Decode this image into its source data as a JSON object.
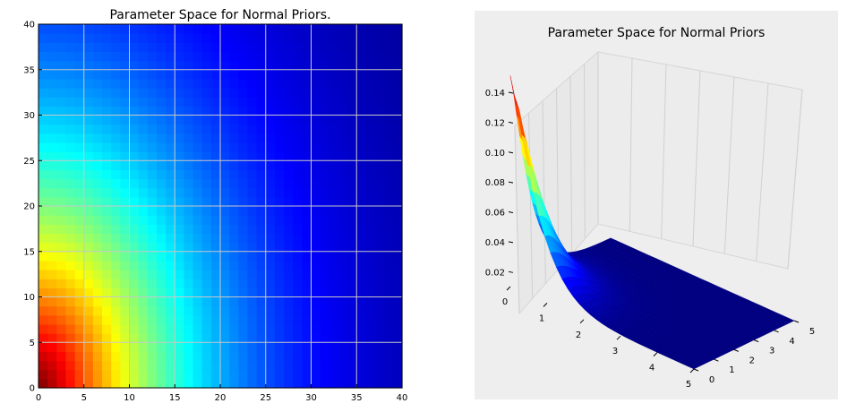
{
  "chart_data": [
    {
      "type": "heatmap",
      "title": "Parameter Space for Normal Priors.",
      "xlabel": "",
      "ylabel": "",
      "xlim": [
        0,
        40
      ],
      "ylim": [
        0,
        40
      ],
      "grid": true,
      "colormap": "jet",
      "cells_per_axis": 40,
      "xticks": [
        "0",
        "5",
        "10",
        "15",
        "20",
        "25",
        "30",
        "35",
        "40"
      ],
      "yticks": [
        "0",
        "5",
        "10",
        "15",
        "20",
        "25",
        "30",
        "35",
        "40"
      ],
      "values": "normalized density, maximum 1.0 at (0,0), decaying toward (40,40)"
    },
    {
      "type": "surface",
      "title": "Parameter Space for Normal Priors",
      "xlim": [
        0,
        5
      ],
      "ylim": [
        0,
        5
      ],
      "zlim": [
        0.01,
        0.15
      ],
      "z_peak": 0.15,
      "x_peak": 0,
      "y_peak": 0,
      "colormap": "jet",
      "xticks": [
        "0",
        "1",
        "2",
        "3",
        "4",
        "5"
      ],
      "yticks": [
        "0",
        "1",
        "2",
        "3",
        "4",
        "5"
      ],
      "zticks": [
        "0.02",
        "0.04",
        "0.06",
        "0.08",
        "0.10",
        "0.12",
        "0.14"
      ],
      "pane_color": "#eeeeee"
    }
  ]
}
